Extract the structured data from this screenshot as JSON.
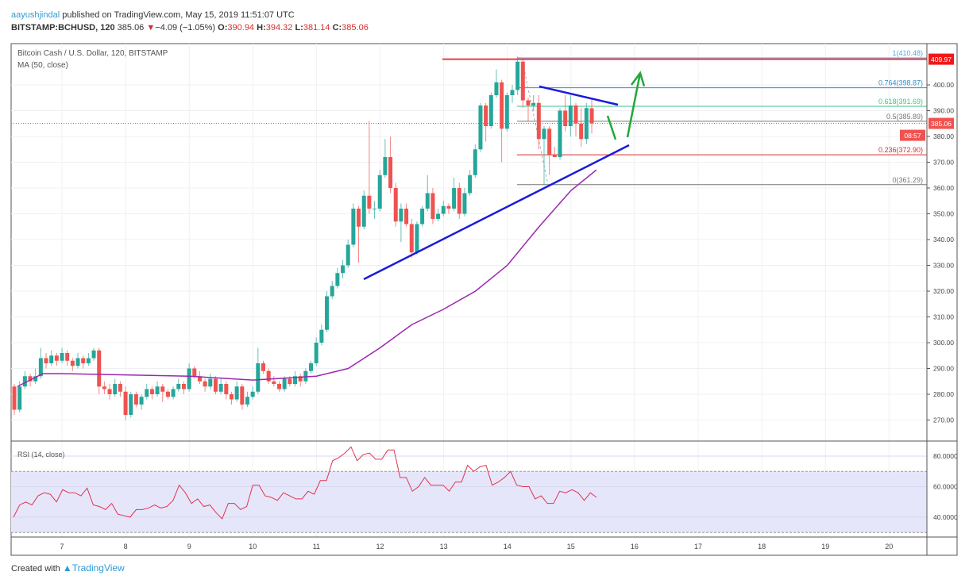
{
  "header": {
    "author": "aayushjindal",
    "published": "published on TradingView.com, May 15, 2019 11:51:07 UTC",
    "symbol": "BITSTAMP:BCHUSD, 120",
    "last": "385.06",
    "change": "−4.09 (−1.05%)",
    "o_label": "O:",
    "o": "390.94",
    "h_label": "H:",
    "h": "394.32",
    "l_label": "L:",
    "l": "381.14",
    "c_label": "C:",
    "c": "385.06"
  },
  "footer": {
    "created_with": "Created with",
    "brand": "TradingView"
  },
  "chart_data": {
    "type": "candlestick",
    "title": "Bitcoin Cash / U.S. Dollar, 120, BITSTAMP",
    "indicator_label": "MA (50, close)",
    "rsi_label": "RSI (14, close)",
    "interval_minutes": 120,
    "first_bar": "May 6 2019 ~06:00 UTC",
    "price_ticks": [
      "270.00",
      "280.00",
      "290.00",
      "300.00",
      "310.00",
      "320.00",
      "330.00",
      "340.00",
      "350.00",
      "360.00",
      "370.00",
      "380.00",
      "390.00",
      "400.00"
    ],
    "rsi_ticks": [
      "40.0000",
      "60.0000",
      "80.0000"
    ],
    "rsi_band": [
      30,
      70
    ],
    "x_ticks": [
      "7",
      "8",
      "9",
      "10",
      "11",
      "12",
      "13",
      "14",
      "15",
      "16",
      "17",
      "18",
      "19",
      "20"
    ],
    "price_labels": {
      "resistance": "409.97",
      "last": "385.06",
      "countdown": "08:57"
    },
    "colors": {
      "up": "#26a69a",
      "down": "#ef5350",
      "ma": "#9c27b0",
      "rsi": "#e0344f",
      "trend": "#1a1adb",
      "arrow": "#22a83a",
      "resistance": "#f23645"
    },
    "fib": [
      {
        "level": "1",
        "price": 410.48,
        "label": "1(410.48)",
        "color": "#5aa9d9"
      },
      {
        "level": "0.764",
        "price": 398.87,
        "label": "0.764(398.87)",
        "color": "#2f8cc9"
      },
      {
        "level": "0.618",
        "price": 391.69,
        "label": "0.618(391.69)",
        "color": "#3cc48a"
      },
      {
        "level": "0.5",
        "price": 385.89,
        "label": "0.5(385.89)",
        "color": "#777777"
      },
      {
        "level": "0.236",
        "price": 372.9,
        "label": "0.236(372.90)",
        "color": "#d32f2f"
      },
      {
        "level": "0",
        "price": 361.29,
        "label": "0(361.29)",
        "color": "#777777"
      }
    ],
    "candles_ohlc": [
      [
        283,
        284,
        272,
        274
      ],
      [
        274,
        285,
        273,
        283
      ],
      [
        283,
        289,
        282,
        287
      ],
      [
        287,
        288,
        283,
        285
      ],
      [
        285,
        290,
        284,
        287
      ],
      [
        287,
        298,
        286,
        294
      ],
      [
        294,
        296,
        290,
        292
      ],
      [
        292,
        297,
        291,
        295
      ],
      [
        295,
        296,
        291,
        293
      ],
      [
        293,
        298,
        292,
        296
      ],
      [
        296,
        297,
        291,
        293
      ],
      [
        293,
        294,
        289,
        291
      ],
      [
        291,
        296,
        290,
        294
      ],
      [
        294,
        295,
        290,
        292
      ],
      [
        292,
        296,
        291,
        294
      ],
      [
        294,
        298,
        293,
        297
      ],
      [
        297,
        298,
        280,
        283
      ],
      [
        283,
        285,
        280,
        282
      ],
      [
        282,
        284,
        278,
        280
      ],
      [
        280,
        286,
        279,
        284
      ],
      [
        284,
        285,
        279,
        281
      ],
      [
        281,
        283,
        270,
        272
      ],
      [
        272,
        281,
        271,
        280
      ],
      [
        280,
        281,
        275,
        276
      ],
      [
        276,
        280,
        274,
        279
      ],
      [
        279,
        284,
        278,
        282
      ],
      [
        282,
        283,
        278,
        280
      ],
      [
        280,
        285,
        279,
        283
      ],
      [
        283,
        284,
        277,
        281
      ],
      [
        281,
        282,
        278,
        279
      ],
      [
        279,
        283,
        278,
        282
      ],
      [
        282,
        286,
        281,
        284
      ],
      [
        284,
        285,
        280,
        282
      ],
      [
        282,
        292,
        281,
        290
      ],
      [
        290,
        291,
        286,
        287
      ],
      [
        287,
        289,
        284,
        285
      ],
      [
        285,
        286,
        281,
        283
      ],
      [
        283,
        288,
        282,
        286
      ],
      [
        286,
        287,
        280,
        281
      ],
      [
        281,
        286,
        280,
        284
      ],
      [
        284,
        285,
        278,
        280
      ],
      [
        280,
        281,
        276,
        278
      ],
      [
        278,
        285,
        277,
        283
      ],
      [
        283,
        284,
        274,
        276
      ],
      [
        276,
        281,
        275,
        279
      ],
      [
        279,
        283,
        278,
        281
      ],
      [
        281,
        298,
        280,
        292
      ],
      [
        292,
        293,
        288,
        289
      ],
      [
        289,
        290,
        284,
        285
      ],
      [
        285,
        287,
        283,
        284
      ],
      [
        284,
        285,
        281,
        282
      ],
      [
        282,
        287,
        281,
        286
      ],
      [
        286,
        287,
        283,
        284
      ],
      [
        284,
        289,
        283,
        287
      ],
      [
        287,
        288,
        283,
        285
      ],
      [
        285,
        290,
        284,
        289
      ],
      [
        289,
        293,
        288,
        292
      ],
      [
        292,
        302,
        291,
        300
      ],
      [
        300,
        307,
        299,
        305
      ],
      [
        305,
        320,
        304,
        318
      ],
      [
        318,
        324,
        317,
        322
      ],
      [
        322,
        329,
        321,
        327
      ],
      [
        327,
        332,
        325,
        330
      ],
      [
        330,
        340,
        329,
        338
      ],
      [
        338,
        354,
        337,
        352
      ],
      [
        352,
        353,
        331,
        345
      ],
      [
        345,
        359,
        344,
        357
      ],
      [
        357,
        386,
        350,
        352
      ],
      [
        352,
        355,
        348,
        352
      ],
      [
        352,
        367,
        351,
        365
      ],
      [
        365,
        379,
        364,
        372
      ],
      [
        372,
        380,
        358,
        360
      ],
      [
        360,
        362,
        345,
        347
      ],
      [
        347,
        354,
        339,
        352
      ],
      [
        352,
        354,
        345,
        346
      ],
      [
        346,
        348,
        333,
        335
      ],
      [
        335,
        347,
        334,
        346
      ],
      [
        346,
        353,
        345,
        352
      ],
      [
        352,
        365,
        351,
        358
      ],
      [
        358,
        360,
        346,
        348
      ],
      [
        348,
        352,
        347,
        350
      ],
      [
        350,
        355,
        349,
        353
      ],
      [
        353,
        354,
        350,
        352
      ],
      [
        352,
        364,
        351,
        360
      ],
      [
        360,
        362,
        348,
        350
      ],
      [
        350,
        360,
        349,
        358
      ],
      [
        358,
        367,
        357,
        365
      ],
      [
        365,
        377,
        364,
        375
      ],
      [
        375,
        393,
        374,
        392
      ],
      [
        392,
        393,
        378,
        384
      ],
      [
        384,
        397,
        383,
        396
      ],
      [
        396,
        406,
        395,
        401
      ],
      [
        401,
        402,
        370,
        383
      ],
      [
        383,
        397,
        382,
        396
      ],
      [
        396,
        400,
        393,
        398
      ],
      [
        398,
        411,
        396,
        409
      ],
      [
        409,
        410,
        391,
        394
      ],
      [
        394,
        395,
        386,
        392
      ],
      [
        392,
        396,
        390,
        393
      ],
      [
        393,
        396,
        375,
        379
      ],
      [
        379,
        384,
        361,
        383
      ],
      [
        383,
        384,
        365,
        373
      ],
      [
        373,
        376,
        372,
        372
      ],
      [
        372,
        391,
        371,
        390
      ],
      [
        390,
        396,
        382,
        384
      ],
      [
        384,
        396,
        380,
        392
      ],
      [
        392,
        393,
        380,
        385
      ],
      [
        385,
        391,
        376,
        379
      ],
      [
        379,
        393,
        377,
        391
      ],
      [
        390.94,
        394.32,
        381.14,
        385.06
      ]
    ],
    "ma50_by_day": [
      [
        6.3,
        283
      ],
      [
        6.7,
        288
      ],
      [
        7.0,
        288
      ],
      [
        8.0,
        287.5
      ],
      [
        9.0,
        287
      ],
      [
        10.0,
        285.5
      ],
      [
        11.0,
        287
      ],
      [
        11.5,
        290
      ],
      [
        12.0,
        298
      ],
      [
        12.5,
        307
      ],
      [
        13.0,
        313
      ],
      [
        13.5,
        320
      ],
      [
        14.0,
        330
      ],
      [
        14.5,
        345
      ],
      [
        15.0,
        359
      ],
      [
        15.4,
        367
      ]
    ],
    "rsi_values": [
      40,
      48,
      50,
      48,
      54,
      56,
      55,
      50,
      58,
      56,
      56,
      54,
      59,
      48,
      47,
      45,
      49,
      42,
      41,
      40,
      45,
      45,
      46,
      48,
      46,
      47,
      51,
      61,
      56,
      49,
      52,
      47,
      48,
      43,
      39,
      49,
      49,
      45,
      47,
      61,
      61,
      54,
      53,
      51,
      56,
      54,
      52,
      52,
      57,
      55,
      64,
      64,
      77,
      79,
      82,
      86,
      77,
      81,
      82,
      78,
      78,
      84,
      84,
      66,
      66,
      57,
      60,
      66,
      61,
      61,
      61,
      57,
      63,
      63,
      74,
      70,
      73,
      74,
      61,
      63,
      66,
      70,
      61,
      60,
      60,
      52,
      54,
      49,
      49,
      57,
      56,
      58,
      56,
      51,
      56,
      53
    ]
  }
}
